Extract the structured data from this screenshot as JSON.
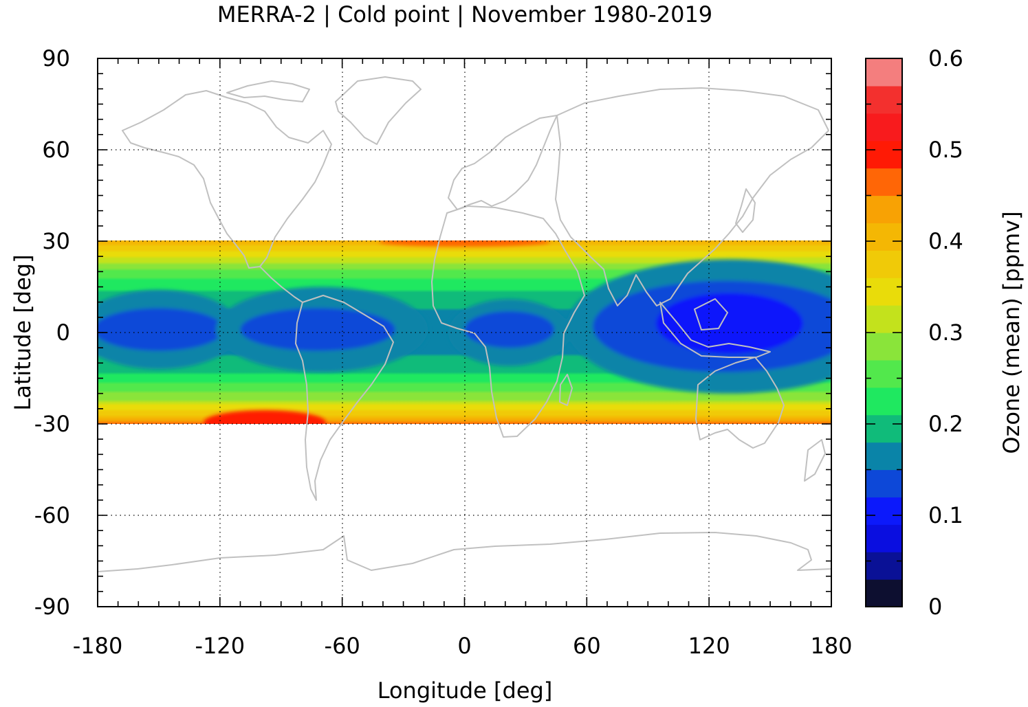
{
  "chart_data": {
    "type": "heatmap",
    "title": "MERRA-2 | Cold point | November 1980-2019",
    "xlabel": "Longitude [deg]",
    "ylabel": "Latitude [deg]",
    "colorbar_label": "Ozone (mean) [ppmv]",
    "xlim": [
      -180,
      180
    ],
    "ylim": [
      -90,
      90
    ],
    "x_ticks": [
      -180,
      -120,
      -60,
      0,
      60,
      120,
      180
    ],
    "y_ticks": [
      -90,
      -60,
      30,
      0,
      -30,
      60,
      90
    ],
    "x_tick_labels": [
      "-180",
      "-120",
      "-60",
      "0",
      "60",
      "120",
      "180"
    ],
    "y_tick_labels": [
      {
        "value": 90,
        "label": "90"
      },
      {
        "value": 60,
        "label": "60"
      },
      {
        "value": 30,
        "label": "30"
      },
      {
        "value": 0,
        "label": "0"
      },
      {
        "value": -30,
        "label": "-30"
      },
      {
        "value": -60,
        "label": "-60"
      },
      {
        "value": -90,
        "label": "-90"
      }
    ],
    "grid": "dotted at major ticks",
    "data_lat_range": [
      -30,
      30
    ],
    "colorbar": {
      "range": [
        0,
        0.6
      ],
      "step": 0.03,
      "ticks": [
        "0",
        "0.1",
        "0.2",
        "0.3",
        "0.4",
        "0.5",
        "0.6"
      ],
      "tick_values": [
        0,
        0.1,
        0.2,
        0.3,
        0.4,
        0.5,
        0.6
      ],
      "colors": [
        "#0d0f30",
        "#0a1196",
        "#0a0ee0",
        "#0c19fb",
        "#0d48d8",
        "#0a84a8",
        "#10bb7a",
        "#1fe860",
        "#52e84c",
        "#8ae43a",
        "#c3e21c",
        "#e9dc0a",
        "#f0ca08",
        "#f4b704",
        "#f8a204",
        "#ff6606",
        "#ff1a05",
        "#f81b1d",
        "#f3302e",
        "#f47e7e",
        "#ffcaca"
      ]
    },
    "field_description_points": [
      {
        "lon": -150,
        "lat": 0,
        "value": 0.13
      },
      {
        "lon": -75,
        "lat": 0,
        "value": 0.13
      },
      {
        "lon": 20,
        "lat": 0,
        "value": 0.13
      },
      {
        "lon": 130,
        "lat": 3,
        "value": 0.09
      },
      {
        "lon": -100,
        "lat": -28,
        "value": 0.5
      },
      {
        "lon": 0,
        "lat": 29,
        "value": 0.48
      }
    ],
    "coastline_color": "#c0c0c0"
  }
}
